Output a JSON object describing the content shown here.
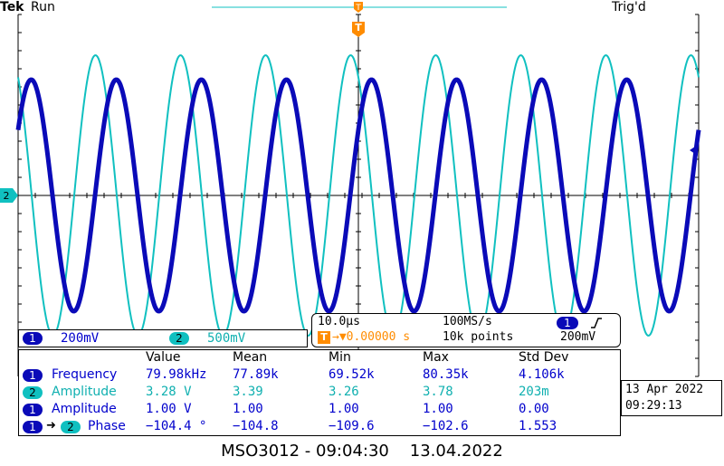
{
  "header": {
    "brand": "Tek",
    "run_state": "Run",
    "trigger_state": "Trig'd",
    "trigger_marker": "T"
  },
  "colors": {
    "ch1": "#0a0ab8",
    "ch2": "#10c0c0",
    "trigger": "#ff8c00",
    "grid": "#000000",
    "text_blue": "#0000cc"
  },
  "channels": {
    "ch1_number": "1",
    "ch1_scale": "200mV",
    "ch2_number": "2",
    "ch2_scale": "500mV",
    "ch2_marker": "2"
  },
  "timebase": {
    "horizontal_scale": "10.0µs",
    "sample_rate": "100MS/s",
    "trigger_channel": "1",
    "trigger_slope_icon": "rising-edge-icon",
    "position_icon": "T",
    "position": "→▼0.00000 s",
    "record_length": "10k points",
    "trigger_level": "200mV"
  },
  "measurements": {
    "columns": [
      "Value",
      "Mean",
      "Min",
      "Max",
      "Std Dev"
    ],
    "rows": [
      {
        "ch_a": "1",
        "ch_b": "",
        "label": "Frequency",
        "color": "ch1",
        "values": [
          "79.98kHz",
          "77.89k",
          "69.52k",
          "80.35k",
          "4.106k"
        ]
      },
      {
        "ch_a": "2",
        "ch_b": "",
        "label": "Amplitude",
        "color": "ch2",
        "values": [
          "3.28 V",
          "3.39",
          "3.26",
          "3.78",
          "203m"
        ]
      },
      {
        "ch_a": "1",
        "ch_b": "",
        "label": "Amplitude",
        "color": "ch1",
        "values": [
          "1.00 V",
          "1.00",
          "1.00",
          "1.00",
          "0.00"
        ]
      },
      {
        "ch_a": "1",
        "ch_b": "2",
        "label": "Phase",
        "color": "mixed",
        "values": [
          "−104.4 °",
          "−104.8",
          "−109.6",
          "−102.6",
          "1.553"
        ]
      }
    ]
  },
  "timestamp": {
    "date": "13 Apr 2022",
    "time": "09:29:13"
  },
  "footer": {
    "caption": "MSO3012 - 09:04:30    13.04.2022"
  }
}
